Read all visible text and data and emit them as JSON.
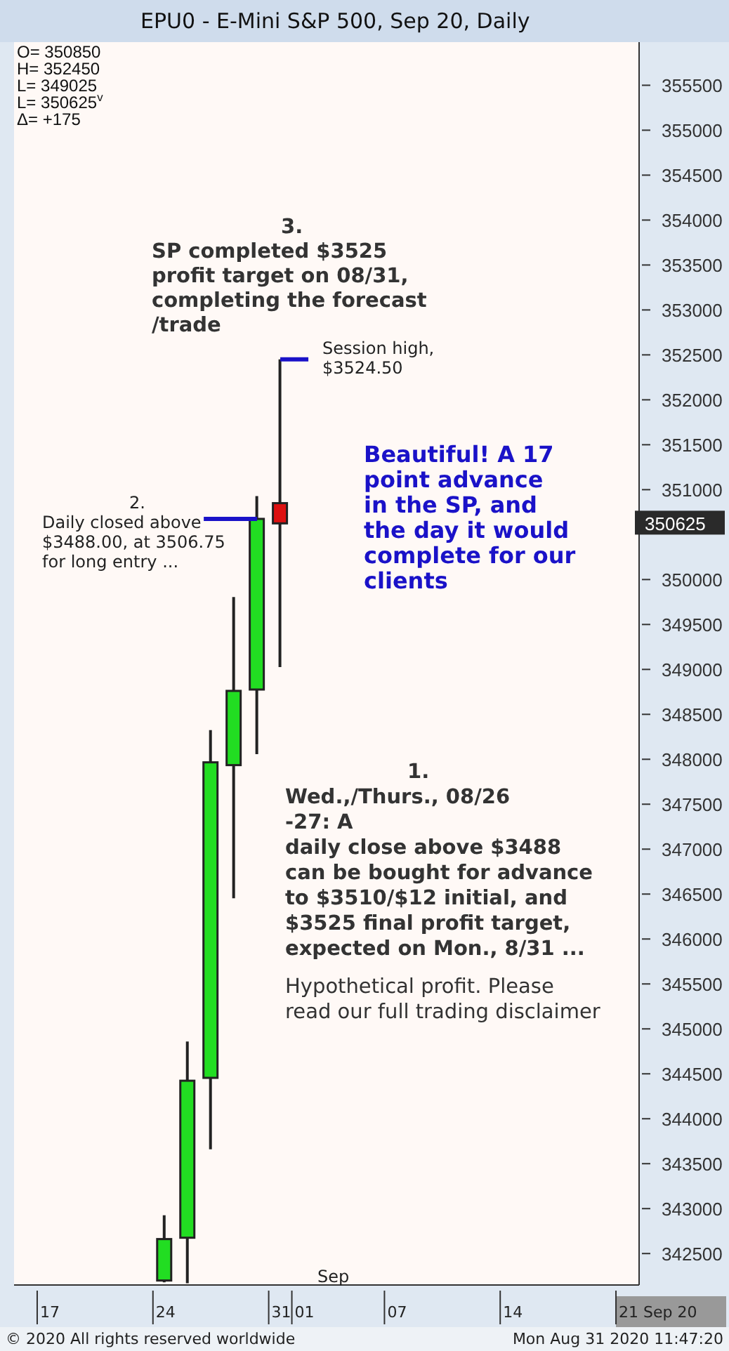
{
  "chart_data": {
    "type": "candlestick",
    "title": "EPU0 - E-Mini S&P 500, Sep 20, Daily",
    "categories": [
      null,
      "17",
      null,
      null,
      null,
      null,
      "24",
      null,
      null,
      null,
      null,
      "31",
      "01",
      null,
      null,
      null,
      "07",
      null,
      null,
      null,
      null,
      "14",
      null,
      null,
      null,
      null,
      "21 Sep 20"
    ],
    "ohlc": [
      null,
      null,
      null,
      null,
      null,
      null,
      [
        342200,
        342926,
        342180,
        342661
      ],
      [
        342676,
        344860,
        342170,
        344423
      ],
      [
        344455,
        348324,
        343659,
        347966
      ],
      [
        347935,
        349806,
        346453,
        348761
      ],
      [
        348776,
        350929,
        348058,
        350675
      ],
      [
        350850,
        352450,
        349025,
        350625
      ],
      null,
      null,
      null,
      null,
      null,
      null,
      null,
      null,
      null,
      null,
      null,
      null,
      null,
      null,
      null
    ],
    "colors": [
      null,
      null,
      null,
      null,
      null,
      null,
      "#22dd22",
      "#22dd22",
      "#22dd22",
      "#22dd22",
      "#22dd22",
      "#dd1111",
      null,
      null,
      null,
      null,
      null,
      null,
      null,
      null,
      null,
      null,
      null,
      null,
      null,
      null,
      null
    ],
    "ylim": [
      342150,
      355980
    ],
    "yticks": [
      342500,
      343000,
      343500,
      344000,
      344500,
      345000,
      345500,
      346000,
      346500,
      347000,
      347500,
      348000,
      348500,
      349000,
      349500,
      350000,
      351000,
      351500,
      352000,
      352500,
      353000,
      353500,
      354000,
      354500,
      355000,
      355500
    ],
    "grid": false,
    "annotations": [
      "O= 350850",
      "H= 352450",
      "L= 349025",
      "L= 350625$^{v}$",
      "Δ= +175",
      "3.\nSP completed $3525\nprofit target on 08/31,\ncompleting the forecast\n/trade",
      {
        "text": "Session high,\n$3524.50",
        "x": "31",
        "y": 352450
      },
      "Beautiful! A 17\npoint advance\nin the SP, and\nthe day it would\ncomplete for our\nclients",
      "2.\nDaily closed above\n$3488.00, at 3506.75\nfor long entry ...",
      "1.\nWed.,/Thurs., 08/26\n-27: A\ndaily close above $3488\ncan be bought for advance\nto $3510/$12 initial, and\n$3525 final profit target,\nexpected on Mon., 8/31 ...",
      "Hypothetical profit. Please\nread our full trading disclaimer",
      "350625",
      "Sep",
      "© 2020 All rights reserved worldwide",
      "Mon Aug 31 2020 11:47:20"
    ]
  }
}
